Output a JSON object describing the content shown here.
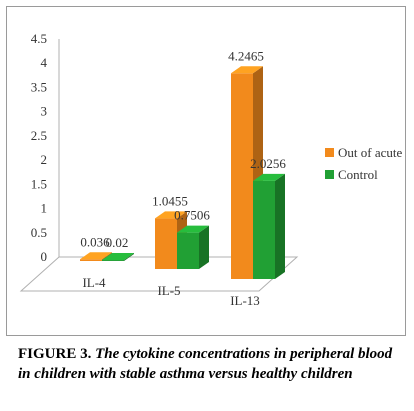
{
  "chart_data": {
    "type": "bar",
    "categories": [
      "IL-4",
      "IL-5",
      "IL-13"
    ],
    "series": [
      {
        "name": "Out of acute",
        "values": [
          0.036,
          1.0455,
          4.2465
        ],
        "labels": [
          "0.036",
          "1.0455",
          "4.2465"
        ],
        "color": "#f28a1c"
      },
      {
        "name": "Control",
        "values": [
          0.02,
          0.7506,
          2.0256
        ],
        "labels": [
          "0.02",
          "0.7506",
          "2.0256"
        ],
        "color": "#21a034"
      }
    ],
    "y_ticks": [
      "0",
      "0.5",
      "1",
      "1.5",
      "2",
      "2.5",
      "3",
      "3.5",
      "4",
      "4.5"
    ],
    "ylim": [
      0,
      4.5
    ],
    "legend_position": "right",
    "style": "3d"
  },
  "caption": {
    "label": "FIGURE 3.",
    "text": "The cytokine concentrations in peripheral blood in children with stable asthma versus healthy children"
  }
}
